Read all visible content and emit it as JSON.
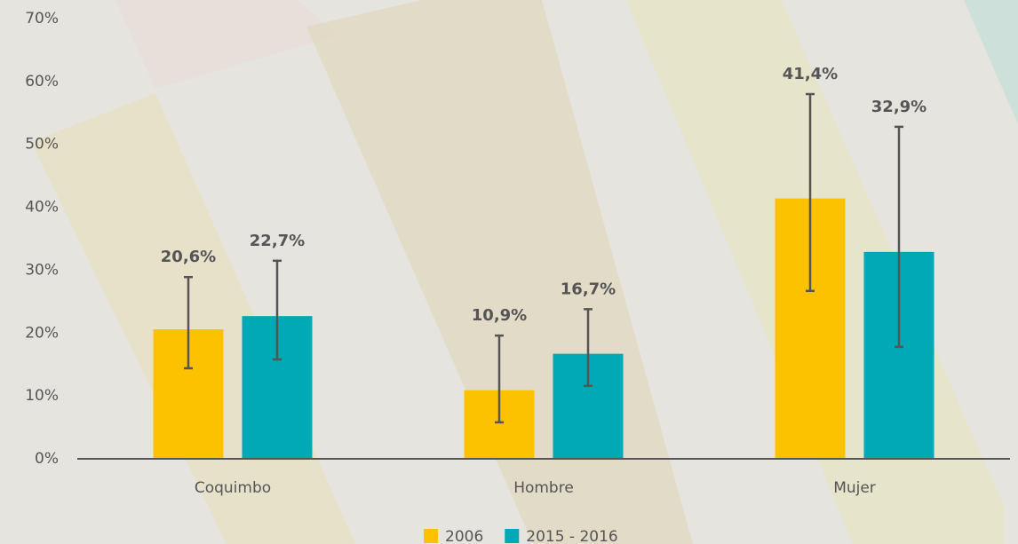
{
  "chart_data": {
    "type": "bar",
    "categories": [
      "Coquimbo",
      "Hombre",
      "Mujer"
    ],
    "series": [
      {
        "name": "2006",
        "color": "#fcc200",
        "values": [
          20.6,
          10.9,
          41.4
        ],
        "value_labels": [
          "20,6%",
          "10,9%",
          "41,4%"
        ],
        "lower": [
          14.4,
          5.8,
          26.7
        ],
        "upper": [
          28.9,
          19.6,
          58.0
        ]
      },
      {
        "name": "2015 - 2016",
        "color": "#00a9b5",
        "values": [
          22.7,
          16.7,
          32.9
        ],
        "value_labels": [
          "22,7%",
          "16,7%",
          "32,9%"
        ],
        "lower": [
          15.8,
          11.6,
          17.8
        ],
        "upper": [
          31.5,
          23.8,
          52.8
        ]
      }
    ],
    "ylim": [
      0,
      70
    ],
    "yticks": [
      {
        "value": 0,
        "label": "0%"
      },
      {
        "value": 10,
        "label": "10%"
      },
      {
        "value": 20,
        "label": "20%"
      },
      {
        "value": 30,
        "label": "30%"
      },
      {
        "value": 40,
        "label": "40%"
      },
      {
        "value": 50,
        "label": "50%"
      },
      {
        "value": 60,
        "label": "60%"
      },
      {
        "value": 70,
        "label": "70%"
      }
    ],
    "legend": "bottom"
  }
}
